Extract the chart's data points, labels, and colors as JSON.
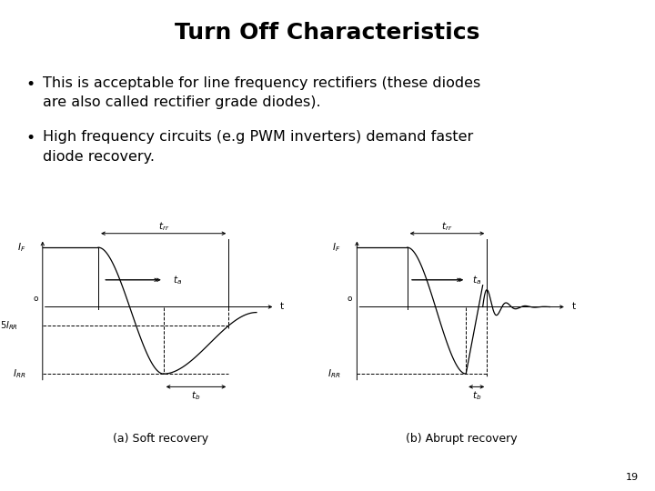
{
  "title": "Turn Off Characteristics",
  "bullet1_line1": "This is acceptable for line frequency rectifiers (these diodes",
  "bullet1_line2": "are also called rectifier grade diodes).",
  "bullet2_line1": "High frequency circuits (e.g PWM inverters) demand faster",
  "bullet2_line2": "diode recovery.",
  "caption_a": "(a) Soft recovery",
  "caption_b": "(b) Abrupt recovery",
  "page_number": "19",
  "bg_color": "#ffffff",
  "text_color": "#000000",
  "title_fontsize": 18,
  "body_fontsize": 11.5,
  "caption_fontsize": 9
}
